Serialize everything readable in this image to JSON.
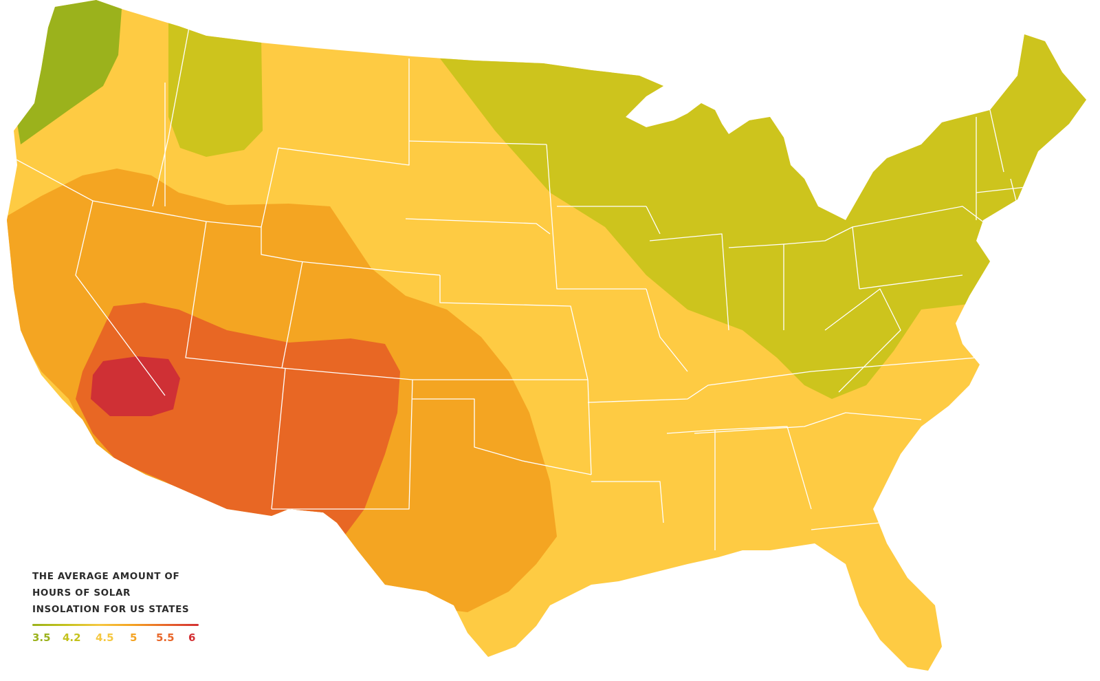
{
  "legend": {
    "title_lines": [
      "THE AVERAGE AMOUNT OF",
      "HOURS OF SOLAR",
      "INSOLATION FOR US STATES"
    ],
    "stops": [
      {
        "label": "3.5",
        "color": "#9bb21c"
      },
      {
        "label": "4.2",
        "color": "#c4c21d"
      },
      {
        "label": "4.5",
        "color": "#f5c842"
      },
      {
        "label": "5",
        "color": "#f4a322"
      },
      {
        "label": "5.5",
        "color": "#e8672a"
      },
      {
        "label": "6",
        "color": "#d32f33"
      }
    ]
  },
  "zones": [
    {
      "value": "3.5",
      "color": "#9bb21c"
    },
    {
      "value": "4.2",
      "color": "#cdc41d"
    },
    {
      "value": "4.5",
      "color": "#fecb43"
    },
    {
      "value": "5",
      "color": "#f4a522"
    },
    {
      "value": "5.5",
      "color": "#e86724"
    },
    {
      "value": "6",
      "color": "#cf3035"
    }
  ],
  "state_border_color": "#ffffff"
}
